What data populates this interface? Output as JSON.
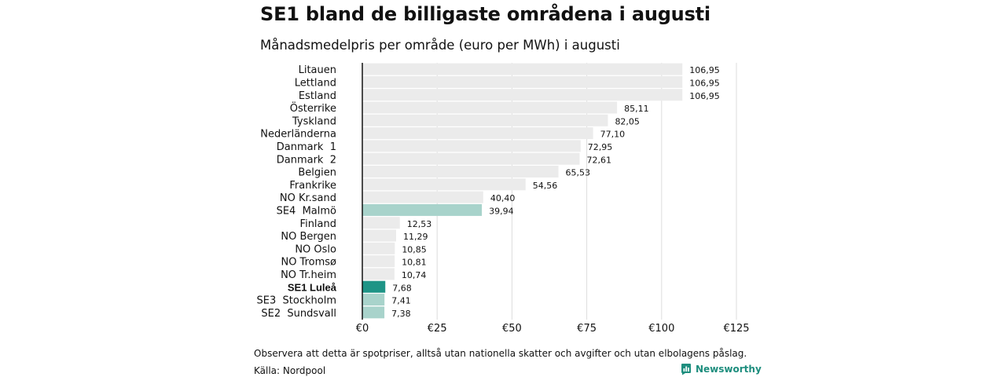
{
  "title": "SE1 bland de billigaste områdena i augusti",
  "subtitle": "Månadsmedelpris per område (euro per MWh) i augusti",
  "note": "Observera att detta är spotpriser, alltså utan nationella skatter och avgifter och utan elbolagens påslag.",
  "source": "Källa: Nordpool",
  "brand": {
    "name": "Newsworthy",
    "icon": "newsworthy-logo-icon",
    "color": "#1e8e7e"
  },
  "colors": {
    "default": "#ebebeb",
    "neighbor": "#a8d3cb",
    "highlight": "#1e9486"
  },
  "chart_data": {
    "type": "bar",
    "orientation": "horizontal",
    "title": "SE1 bland de billigaste områdena i augusti",
    "subtitle": "Månadsmedelpris per område (euro per MWh) i augusti",
    "categories": [
      "Litauen",
      "Lettland",
      "Estland",
      "Österrike",
      "Tyskland",
      "Nederländerna",
      "Danmark  1",
      "Danmark  2",
      "Belgien",
      "Frankrike",
      "NO Kr.sand",
      "SE4  Malmö",
      "Finland",
      "NO Bergen",
      "NO Oslo",
      "NO Tromsø",
      "NO Tr.heim",
      "SE1 Luleå",
      "SE3  Stockholm",
      "SE2  Sundsvall"
    ],
    "values": [
      106.95,
      106.95,
      106.95,
      85.11,
      82.05,
      77.1,
      72.95,
      72.61,
      65.53,
      54.56,
      40.4,
      39.94,
      12.53,
      11.29,
      10.85,
      10.81,
      10.74,
      7.68,
      7.41,
      7.38
    ],
    "value_labels": [
      "106,95",
      "106,95",
      "106,95",
      "85,11",
      "82,05",
      "77,10",
      "72,95",
      "72,61",
      "65,53",
      "54,56",
      "40,40",
      "39,94",
      "12,53",
      "11,29",
      "10,85",
      "10,81",
      "10,74",
      "7,68",
      "7,41",
      "7,38"
    ],
    "bar_styles": [
      "default",
      "default",
      "default",
      "default",
      "default",
      "default",
      "default",
      "default",
      "default",
      "default",
      "default",
      "neighbor",
      "default",
      "default",
      "default",
      "default",
      "default",
      "highlight",
      "neighbor",
      "neighbor"
    ],
    "bold_categories": [
      "SE1 Luleå"
    ],
    "xlim": [
      0,
      125
    ],
    "xticks": [
      0,
      25,
      50,
      75,
      100,
      125
    ],
    "xtick_labels": [
      "€0",
      "€25",
      "€50",
      "€75",
      "€100",
      "€125"
    ],
    "grid": true
  }
}
